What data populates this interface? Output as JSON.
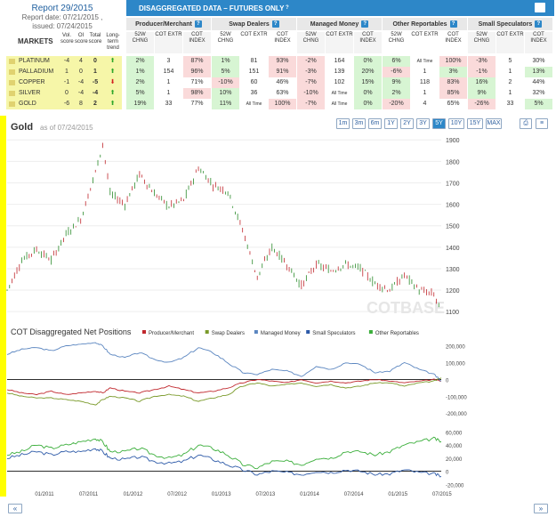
{
  "header": {
    "report_title": "Report 29/2015",
    "report_date": "Report date: 07/21/2015 ,",
    "issued": "issued: 07/24/2015",
    "markets_label": "MARKETS",
    "col_vol": "Vol. score",
    "col_oi": "OI score",
    "col_total": "Total score",
    "col_trend": "Long-term trend",
    "banner_title": "DISAGGREGATED DATA – FUTURES ONLY",
    "q": "?"
  },
  "groups": [
    {
      "label": "Producer/Merchant"
    },
    {
      "label": "Swap Dealers"
    },
    {
      "label": "Managed Money"
    },
    {
      "label": "Other Reportables"
    },
    {
      "label": "Small Speculators"
    }
  ],
  "sub_headers": [
    "52W CHNG",
    "COT EXTR",
    "COT INDEX"
  ],
  "markets": [
    {
      "name": "PLATINUM",
      "vol": "-4",
      "oi": "4",
      "total": "0",
      "trend": "up",
      "vals": [
        "2%",
        "3",
        "87%",
        "1%",
        "81",
        "93%",
        "-2%",
        "164",
        "0%",
        "6%",
        "All Time",
        "100%",
        "-3%",
        "5",
        "30%"
      ]
    },
    {
      "name": "PALLADIUM",
      "vol": "1",
      "oi": "0",
      "total": "1",
      "trend": "up",
      "vals": [
        "1%",
        "154",
        "96%",
        "5%",
        "151",
        "91%",
        "-3%",
        "139",
        "20%",
        "-6%",
        "1",
        "3%",
        "-1%",
        "1",
        "13%"
      ]
    },
    {
      "name": "COPPER",
      "vol": "-1",
      "oi": "-4",
      "total": "-5",
      "trend": "down",
      "vals": [
        "2%",
        "1",
        "71%",
        "-10%",
        "60",
        "46%",
        "-7%",
        "102",
        "15%",
        "9%",
        "118",
        "83%",
        "16%",
        "2",
        "44%"
      ]
    },
    {
      "name": "SILVER",
      "vol": "0",
      "oi": "-4",
      "total": "-4",
      "trend": "up",
      "vals": [
        "5%",
        "1",
        "98%",
        "10%",
        "36",
        "63%",
        "-10%",
        "All Time",
        "0%",
        "2%",
        "1",
        "85%",
        "9%",
        "1",
        "32%"
      ]
    },
    {
      "name": "GOLD",
      "vol": "-6",
      "oi": "8",
      "total": "2",
      "trend": "up",
      "vals": [
        "19%",
        "33",
        "77%",
        "11%",
        "All Time",
        "100%",
        "-7%",
        "All Time",
        "0%",
        "-20%",
        "4",
        "65%",
        "-26%",
        "33",
        "5%"
      ]
    }
  ],
  "chart": {
    "title": "Gold",
    "asof": "as of 07/24/2015",
    "zoom_buttons": [
      "1m",
      "3m",
      "6m",
      "1Y",
      "2Y",
      "3Y",
      "5Y",
      "10Y",
      "15Y",
      "MAX"
    ],
    "active_zoom": "5Y",
    "watermark": "COTBASE"
  },
  "cot": {
    "title": "COT Disaggregated Net Positions",
    "legend": [
      {
        "name": "Producer/Merchant",
        "color": "#c0272d"
      },
      {
        "name": "Swap Dealers",
        "color": "#7a9a2a"
      },
      {
        "name": "Managed Money",
        "color": "#5b86c0"
      },
      {
        "name": "Small Speculators",
        "color": "#2d5aa8"
      },
      {
        "name": "Other Reportables",
        "color": "#3aae3a"
      }
    ]
  },
  "chart_data": [
    {
      "type": "line",
      "title": "Gold",
      "y_ticks": [
        1100,
        1200,
        1300,
        1400,
        1500,
        1600,
        1700,
        1800,
        1900
      ],
      "ylim": [
        1080,
        1930
      ],
      "x_ticks": [
        "01/2011",
        "07/2011",
        "01/2012",
        "07/2012",
        "01/2013",
        "07/2013",
        "01/2014",
        "07/2014",
        "01/2015",
        "07/2015"
      ],
      "x": [
        "2010-08",
        "2010-10",
        "2010-12",
        "2011-02",
        "2011-04",
        "2011-06",
        "2011-08",
        "2011-09",
        "2011-10",
        "2011-12",
        "2012-02",
        "2012-04",
        "2012-06",
        "2012-08",
        "2012-10",
        "2012-12",
        "2013-02",
        "2013-04",
        "2013-06",
        "2013-08",
        "2013-10",
        "2013-12",
        "2014-02",
        "2014-04",
        "2014-06",
        "2014-08",
        "2014-10",
        "2014-12",
        "2015-02",
        "2015-04",
        "2015-06",
        "2015-07"
      ],
      "series": [
        {
          "values": [
            1200,
            1340,
            1390,
            1340,
            1460,
            1530,
            1750,
            1880,
            1650,
            1600,
            1740,
            1650,
            1590,
            1620,
            1770,
            1690,
            1660,
            1480,
            1260,
            1400,
            1320,
            1220,
            1320,
            1290,
            1320,
            1300,
            1230,
            1200,
            1270,
            1200,
            1180,
            1100
          ]
        }
      ]
    },
    {
      "type": "line",
      "title": "COT Disaggregated Net Positions",
      "panel": "upper",
      "y_ticks": [
        200000,
        100000,
        0,
        -100000,
        -200000
      ],
      "ylim": [
        -220000,
        230000
      ],
      "series": [
        {
          "name": "Producer/Merchant",
          "values": [
            -60000,
            -80000,
            -90000,
            -70000,
            -90000,
            -80000,
            -70000,
            -80000,
            -50000,
            -70000,
            -80000,
            -60000,
            -40000,
            -60000,
            -80000,
            -70000,
            -50000,
            -20000,
            0,
            -10000,
            -20000,
            0,
            -20000,
            -10000,
            -20000,
            -10000,
            0,
            -10000,
            -20000,
            -10000,
            0,
            -10000
          ]
        },
        {
          "name": "Swap Dealers",
          "values": [
            -80000,
            -100000,
            -110000,
            -110000,
            -120000,
            -130000,
            -150000,
            -120000,
            -100000,
            -110000,
            -130000,
            -100000,
            -90000,
            -100000,
            -130000,
            -110000,
            -90000,
            -40000,
            -20000,
            -40000,
            -30000,
            -20000,
            -40000,
            -30000,
            -50000,
            -40000,
            -20000,
            -20000,
            -40000,
            -20000,
            -10000,
            10000
          ]
        },
        {
          "name": "Managed Money",
          "values": [
            150000,
            180000,
            190000,
            170000,
            200000,
            210000,
            220000,
            200000,
            150000,
            130000,
            160000,
            120000,
            100000,
            130000,
            190000,
            160000,
            100000,
            40000,
            30000,
            60000,
            50000,
            20000,
            80000,
            60000,
            100000,
            90000,
            40000,
            50000,
            100000,
            60000,
            30000,
            -10000
          ]
        }
      ]
    },
    {
      "type": "line",
      "panel": "lower",
      "y_ticks": [
        60000,
        40000,
        20000,
        0,
        -20000
      ],
      "ylim": [
        -25000,
        70000
      ],
      "series": [
        {
          "name": "Small Speculators",
          "values": [
            20000,
            25000,
            30000,
            25000,
            30000,
            30000,
            35000,
            30000,
            20000,
            18000,
            22000,
            15000,
            12000,
            15000,
            25000,
            18000,
            10000,
            2000,
            -5000,
            0,
            -2000,
            -5000,
            0,
            -2000,
            2000,
            0,
            -5000,
            -4000,
            2000,
            -2000,
            -4000,
            -8000
          ]
        },
        {
          "name": "Other Reportables",
          "values": [
            25000,
            30000,
            40000,
            35000,
            40000,
            45000,
            50000,
            45000,
            30000,
            30000,
            35000,
            25000,
            20000,
            25000,
            40000,
            35000,
            25000,
            10000,
            5000,
            15000,
            15000,
            10000,
            20000,
            20000,
            30000,
            30000,
            25000,
            30000,
            40000,
            45000,
            50000,
            45000
          ]
        }
      ]
    }
  ]
}
